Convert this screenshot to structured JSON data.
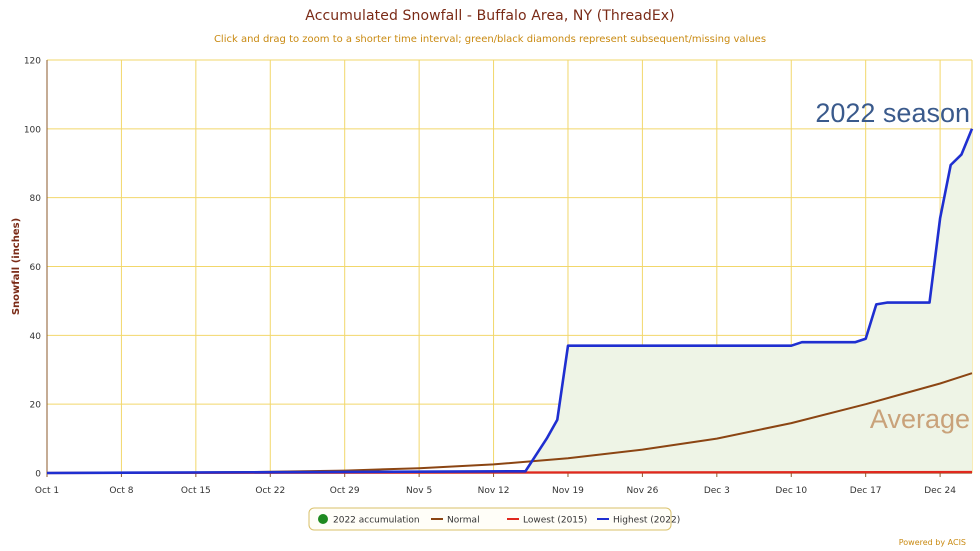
{
  "header": {
    "title": "Accumulated Snowfall - Buffalo Area, NY (ThreadEx)",
    "subtitle": "Click and drag to zoom to a shorter time interval; green/black diamonds represent subsequent/missing values"
  },
  "footer": {
    "powered_by": "Powered by ACIS"
  },
  "colors": {
    "grid": "#f2d76b",
    "axis": "#8b5a2b",
    "fill": "#eef4e6",
    "normal": "#8b4513",
    "lowest": "#e0281e",
    "highest": "#1f2fd0",
    "accumulation_marker": "#1f8a1f",
    "season_annotation": "#3a5a8c",
    "average_annotation": "#c9a27a"
  },
  "annotations": {
    "season": "2022 season",
    "average": "Average"
  },
  "chart_data": {
    "type": "line",
    "title": "Accumulated Snowfall - Buffalo Area, NY (ThreadEx)",
    "subtitle": "Click and drag to zoom to a shorter time interval; green/black diamonds represent subsequent/missing values",
    "ylabel": "Snowfall (inches)",
    "xlabel": "",
    "x_start": "Oct 1",
    "x_ticks": [
      "Oct 1",
      "Oct 8",
      "Oct 15",
      "Oct 22",
      "Oct 29",
      "Nov 5",
      "Nov 12",
      "Nov 19",
      "Nov 26",
      "Dec 3",
      "Dec 10",
      "Dec 17",
      "Dec 24"
    ],
    "y_ticks": [
      0,
      20,
      40,
      60,
      80,
      100,
      120
    ],
    "ylim": [
      0,
      120
    ],
    "xlim": [
      "Oct 1",
      "Dec 27"
    ],
    "grid": true,
    "legend_position": "bottom-center",
    "series": [
      {
        "name": "2022 accumulation",
        "style": "area",
        "marker": "circle",
        "points": [
          [
            "Oct 1",
            0
          ],
          [
            "Nov 15",
            0.5
          ],
          [
            "Nov 17",
            10
          ],
          [
            "Nov 18",
            15.5
          ],
          [
            "Nov 19",
            37
          ],
          [
            "Dec 10",
            37
          ],
          [
            "Dec 11",
            38
          ],
          [
            "Dec 16",
            38
          ],
          [
            "Dec 17",
            39
          ],
          [
            "Dec 18",
            49
          ],
          [
            "Dec 19",
            49.5
          ],
          [
            "Dec 23",
            49.5
          ],
          [
            "Dec 24",
            74
          ],
          [
            "Dec 25",
            89.5
          ],
          [
            "Dec 26",
            92.5
          ],
          [
            "Dec 27",
            100
          ]
        ]
      },
      {
        "name": "Normal",
        "style": "line",
        "points": [
          [
            "Oct 1",
            0
          ],
          [
            "Oct 8",
            0.05
          ],
          [
            "Oct 15",
            0.15
          ],
          [
            "Oct 22",
            0.35
          ],
          [
            "Oct 29",
            0.7
          ],
          [
            "Nov 5",
            1.4
          ],
          [
            "Nov 12",
            2.5
          ],
          [
            "Nov 19",
            4.3
          ],
          [
            "Nov 26",
            6.8
          ],
          [
            "Dec 3",
            10
          ],
          [
            "Dec 10",
            14.5
          ],
          [
            "Dec 17",
            20
          ],
          [
            "Dec 24",
            26
          ],
          [
            "Dec 27",
            29
          ]
        ]
      },
      {
        "name": "Lowest (2015)",
        "style": "line",
        "points": [
          [
            "Oct 1",
            0
          ],
          [
            "Dec 27",
            0.3
          ]
        ]
      },
      {
        "name": "Highest (2022)",
        "style": "line",
        "points": [
          [
            "Oct 1",
            0
          ],
          [
            "Nov 15",
            0.5
          ],
          [
            "Nov 17",
            10
          ],
          [
            "Nov 18",
            15.5
          ],
          [
            "Nov 19",
            37
          ],
          [
            "Dec 10",
            37
          ],
          [
            "Dec 11",
            38
          ],
          [
            "Dec 16",
            38
          ],
          [
            "Dec 17",
            39
          ],
          [
            "Dec 18",
            49
          ],
          [
            "Dec 19",
            49.5
          ],
          [
            "Dec 23",
            49.5
          ],
          [
            "Dec 24",
            74
          ],
          [
            "Dec 25",
            89.5
          ],
          [
            "Dec 26",
            92.5
          ],
          [
            "Dec 27",
            100
          ]
        ]
      }
    ]
  }
}
